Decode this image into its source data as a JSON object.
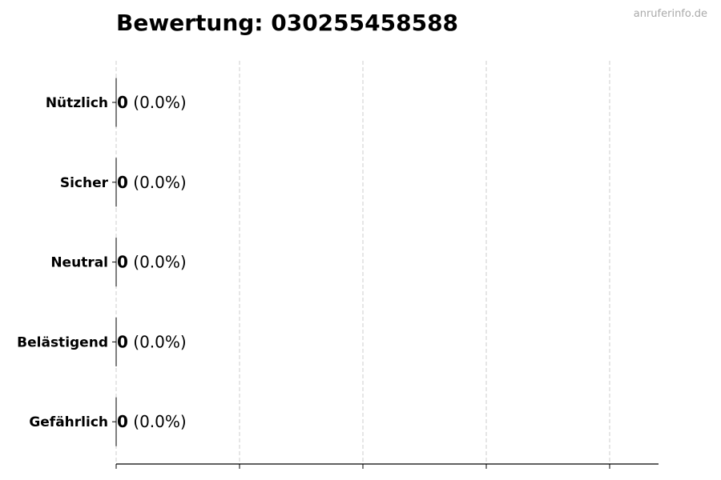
{
  "watermark": "anruferinfo.de",
  "chart_data": {
    "type": "bar",
    "orientation": "horizontal",
    "title": "Bewertung: 030255458588",
    "categories": [
      "Nützlich",
      "Sicher",
      "Neutral",
      "Belästigend",
      "Gefährlich"
    ],
    "values": [
      0,
      0,
      0,
      0,
      0
    ],
    "data_labels": [
      {
        "count": "0",
        "percent": "(0.0%)"
      },
      {
        "count": "0",
        "percent": "(0.0%)"
      },
      {
        "count": "0",
        "percent": "(0.0%)"
      },
      {
        "count": "0",
        "percent": "(0.0%)"
      },
      {
        "count": "0",
        "percent": "(0.0%)"
      }
    ],
    "xlabel": "",
    "ylabel": "",
    "x_tick_labels_shown": false,
    "grid": "x, dashed",
    "bar_edge_color": "#000000",
    "grid_color": "#cccccc"
  }
}
